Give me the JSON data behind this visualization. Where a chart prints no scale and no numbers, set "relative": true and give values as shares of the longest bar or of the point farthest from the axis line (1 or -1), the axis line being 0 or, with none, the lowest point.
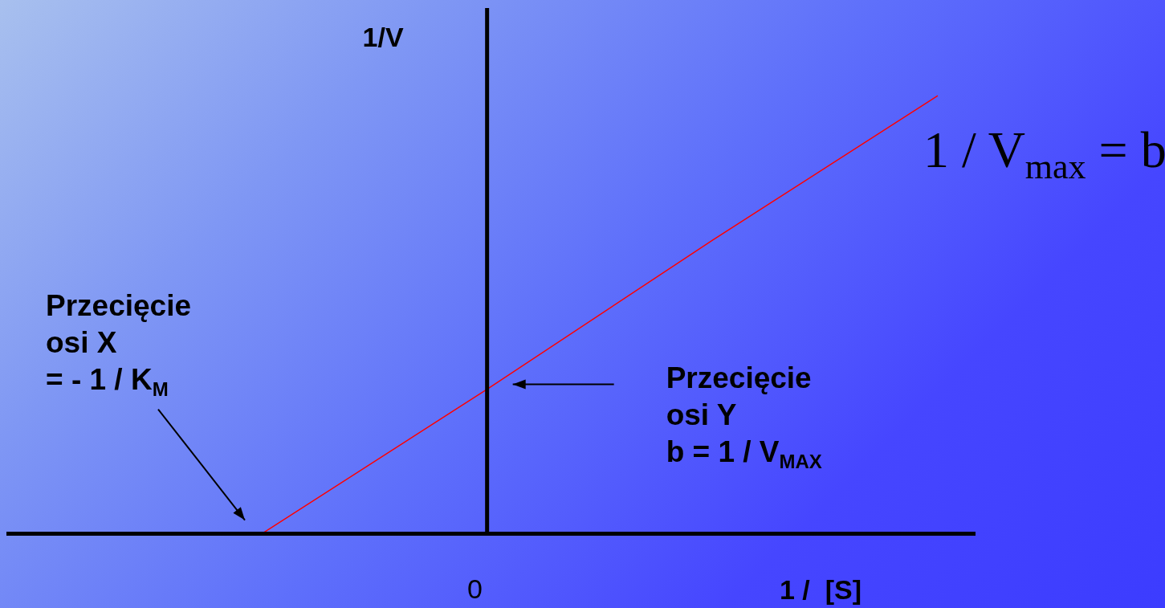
{
  "chart_data": {
    "type": "line",
    "relative": true,
    "xlabel": "1 /  [S]",
    "ylabel": "1/V",
    "categories": [
      null,
      null,
      null,
      null
    ],
    "series": [
      {
        "color": "#ff0000",
        "values": [
          0,
          0.33,
          0.67,
          1
        ]
      }
    ],
    "marker": "none",
    "grid": false,
    "legend": false,
    "annotations": [
      "Przecięcie\nosi X\n= - 1 / K$_{M}$",
      "Przecięcie\nosi Y\nb = 1 / V$_{MAX}$",
      "1 / V$_{max}$ = b",
      "0"
    ]
  }
}
